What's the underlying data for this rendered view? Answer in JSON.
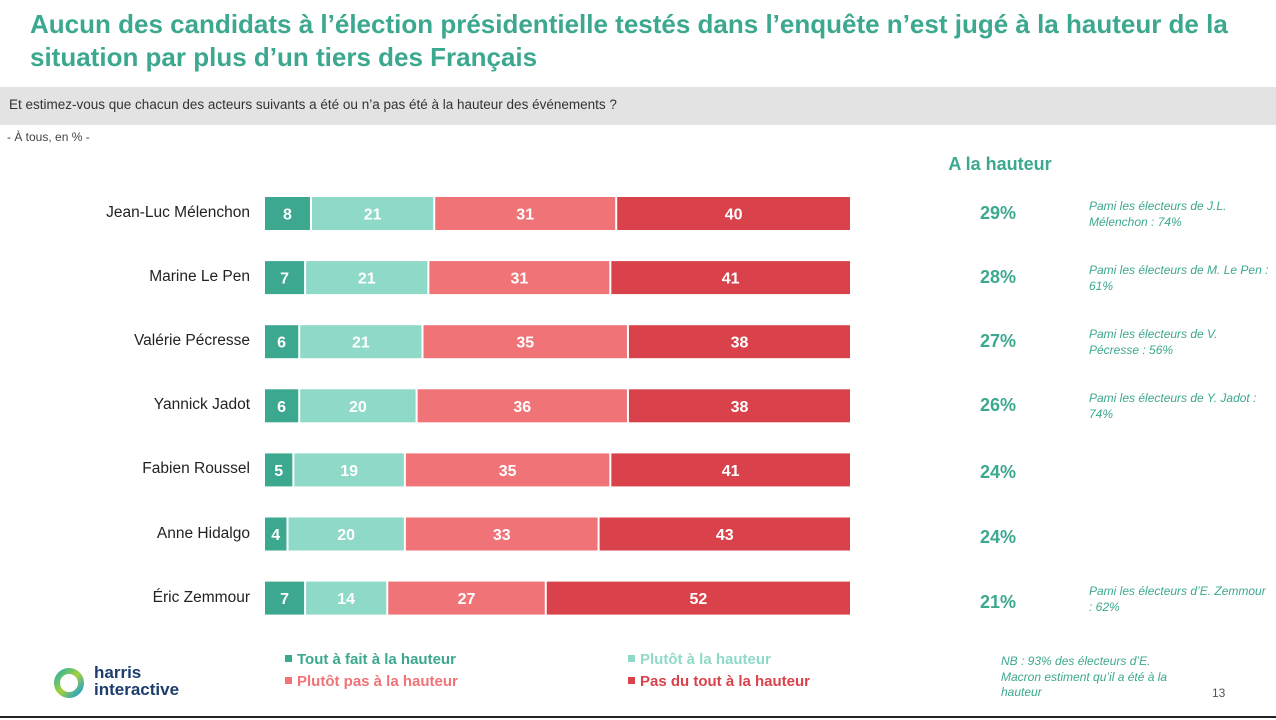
{
  "title": "Aucun des candidats à l’élection présidentielle testés dans l’enquête n’est jugé à la hauteur de la situation par plus d’un tiers des Français",
  "question": "Et estimez-vous que chacun des acteurs suivants a été ou n’a pas été à la hauteur des événements ?",
  "base": "- À tous, en % -",
  "column_header": "A la hauteur",
  "colors": {
    "title": "#3ca88f",
    "tout_a_fait": "#3ca88f",
    "plutot": "#8ed9c8",
    "plutot_pas": "#f07377",
    "pas_du_tout": "#d9424b"
  },
  "chart_data": {
    "type": "bar",
    "orientation": "horizontal",
    "stacked": true,
    "categories": [
      "Jean-Luc Mélenchon",
      "Marine Le Pen",
      "Valérie Pécresse",
      "Yannick Jadot",
      "Fabien Roussel",
      "Anne Hidalgo",
      "Éric Zemmour"
    ],
    "series": [
      {
        "name": "Tout à fait à la hauteur",
        "values": [
          8,
          7,
          6,
          6,
          5,
          4,
          7
        ]
      },
      {
        "name": "Plutôt à la hauteur",
        "values": [
          21,
          21,
          21,
          20,
          19,
          20,
          14
        ]
      },
      {
        "name": "Plutôt pas à la hauteur",
        "values": [
          31,
          31,
          35,
          36,
          35,
          33,
          27
        ]
      },
      {
        "name": "Pas du tout à la hauteur",
        "values": [
          40,
          41,
          38,
          38,
          41,
          43,
          52
        ]
      }
    ],
    "totals_a_la_hauteur": [
      "29%",
      "28%",
      "27%",
      "26%",
      "24%",
      "24%",
      "21%"
    ],
    "notes": [
      "Pami les électeurs de J.L. Mélenchon : 74%",
      "Pami les électeurs de M. Le Pen : 61%",
      "Pami les électeurs de V. Pécresse : 56%",
      "Pami les électeurs de Y. Jadot : 74%",
      "",
      "",
      "Pami les électeurs d’E. Zemmour : 62%"
    ],
    "xlim": [
      0,
      100
    ],
    "legend_position": "bottom"
  },
  "legend": [
    {
      "label": "Tout à fait à la hauteur",
      "color": "#3ca88f",
      "text_color": "#3ca88f"
    },
    {
      "label": "Plutôt à la hauteur",
      "color": "#8ed9c8",
      "text_color": "#8ed9c8"
    },
    {
      "label": "Plutôt pas à la hauteur",
      "color": "#f07377",
      "text_color": "#f07377"
    },
    {
      "label": "Pas du tout à la hauteur",
      "color": "#d9424b",
      "text_color": "#d9424b"
    }
  ],
  "nb_note": "NB : 93% des électeurs d’E. Macron estiment qu’il a été à la hauteur",
  "page_number": "13",
  "logo": {
    "line1": "harris",
    "line2": "interactive"
  }
}
